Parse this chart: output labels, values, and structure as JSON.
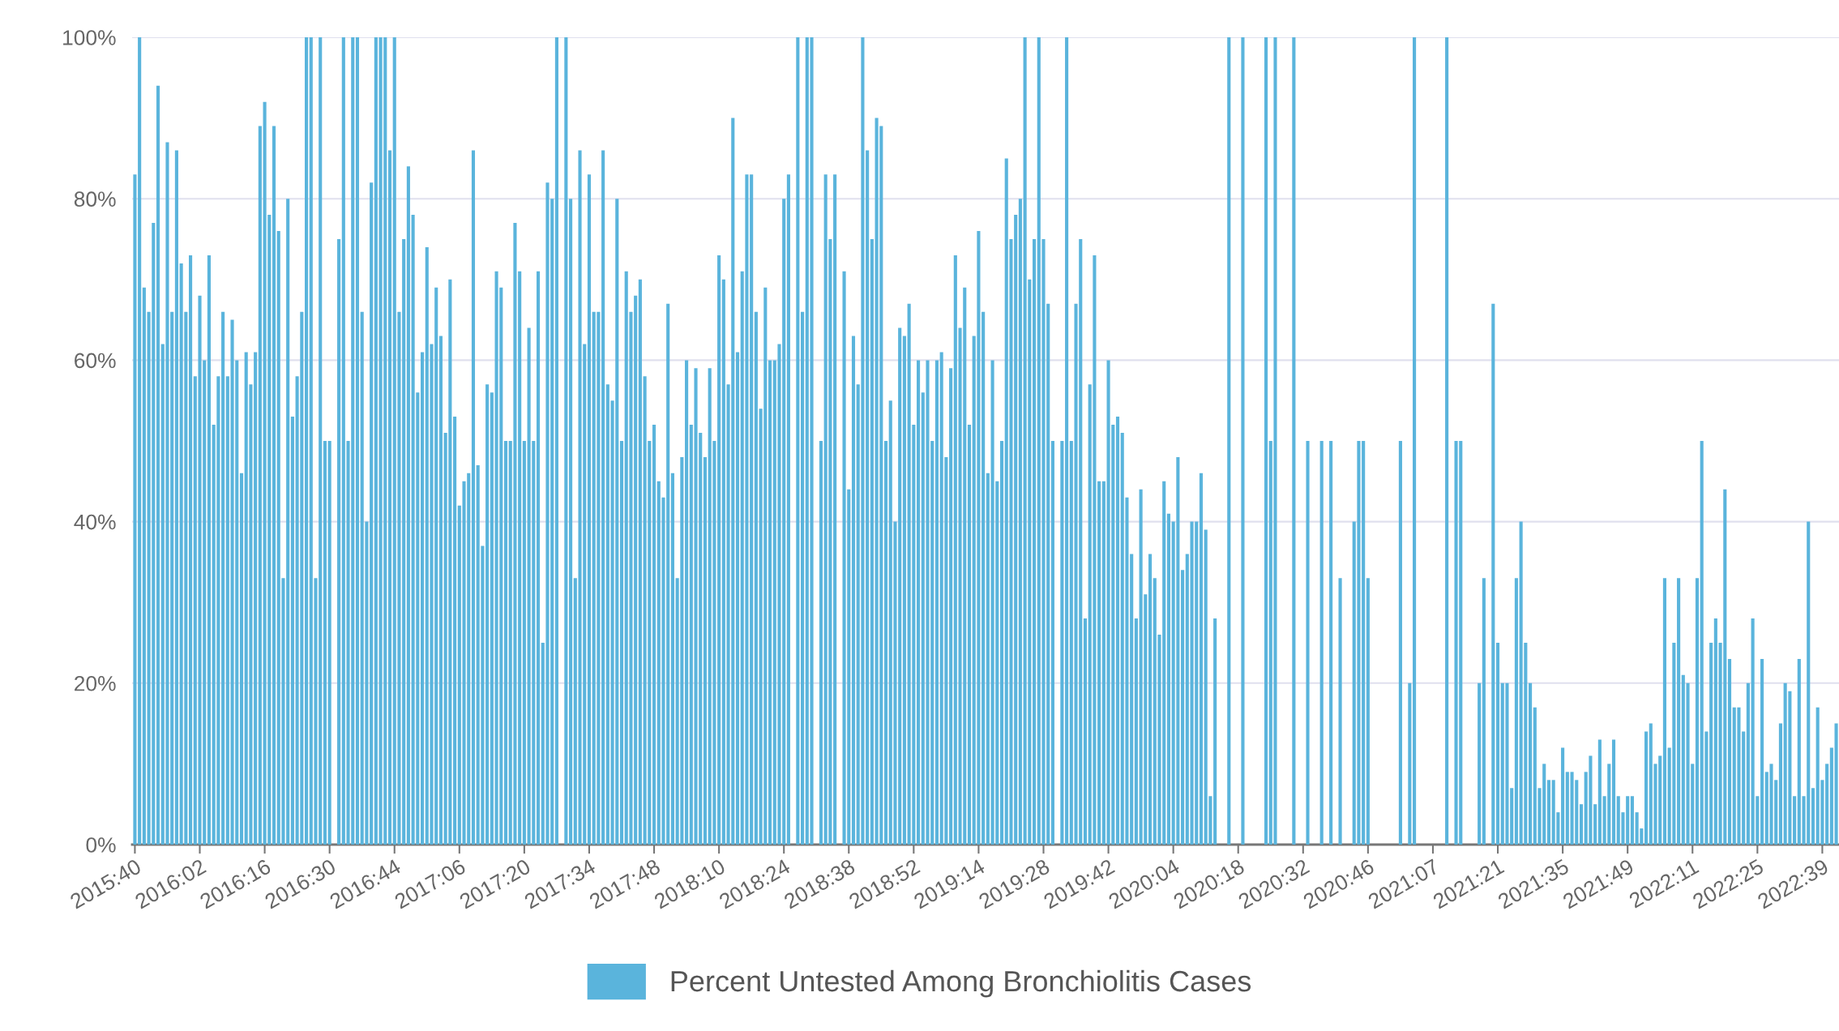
{
  "chart_data": {
    "type": "bar",
    "categories": [
      "2015:40",
      null,
      null,
      null,
      null,
      null,
      null,
      null,
      null,
      null,
      null,
      null,
      null,
      null,
      "2016:02",
      null,
      null,
      null,
      null,
      null,
      null,
      null,
      null,
      null,
      null,
      null,
      null,
      null,
      "2016:16",
      null,
      null,
      null,
      null,
      null,
      null,
      null,
      null,
      null,
      null,
      null,
      null,
      null,
      "2016:30",
      null,
      null,
      null,
      null,
      null,
      null,
      null,
      null,
      null,
      null,
      null,
      null,
      null,
      "2016:44",
      null,
      null,
      null,
      null,
      null,
      null,
      null,
      null,
      null,
      null,
      null,
      null,
      null,
      "2017:06",
      null,
      null,
      null,
      null,
      null,
      null,
      null,
      null,
      null,
      null,
      null,
      null,
      null,
      "2017:20",
      null,
      null,
      null,
      null,
      null,
      null,
      null,
      null,
      null,
      null,
      null,
      null,
      null,
      "2017:34",
      null,
      null,
      null,
      null,
      null,
      null,
      null,
      null,
      null,
      null,
      null,
      null,
      null,
      "2017:48",
      null,
      null,
      null,
      null,
      null,
      null,
      null,
      null,
      null,
      null,
      null,
      null,
      null,
      "2018:10",
      null,
      null,
      null,
      null,
      null,
      null,
      null,
      null,
      null,
      null,
      null,
      null,
      null,
      "2018:24",
      null,
      null,
      null,
      null,
      null,
      null,
      null,
      null,
      null,
      null,
      null,
      null,
      null,
      "2018:38",
      null,
      null,
      null,
      null,
      null,
      null,
      null,
      null,
      null,
      null,
      null,
      null,
      null,
      "2018:52",
      null,
      null,
      null,
      null,
      null,
      null,
      null,
      null,
      null,
      null,
      null,
      null,
      null,
      "2019:14",
      null,
      null,
      null,
      null,
      null,
      null,
      null,
      null,
      null,
      null,
      null,
      null,
      null,
      "2019:28",
      null,
      null,
      null,
      null,
      null,
      null,
      null,
      null,
      null,
      null,
      null,
      null,
      null,
      "2019:42",
      null,
      null,
      null,
      null,
      null,
      null,
      null,
      null,
      null,
      null,
      null,
      null,
      null,
      "2020:04",
      null,
      null,
      null,
      null,
      null,
      null,
      null,
      null,
      null,
      null,
      null,
      null,
      null,
      "2020:18",
      null,
      null,
      null,
      null,
      null,
      null,
      null,
      null,
      null,
      null,
      null,
      null,
      null,
      "2020:32",
      null,
      null,
      null,
      null,
      null,
      null,
      null,
      null,
      null,
      null,
      null,
      null,
      null,
      "2020:46",
      null,
      null,
      null,
      null,
      null,
      null,
      null,
      null,
      null,
      null,
      null,
      null,
      null,
      "2021:07",
      null,
      null,
      null,
      null,
      null,
      null,
      null,
      null,
      null,
      null,
      null,
      null,
      null,
      "2021:21",
      null,
      null,
      null,
      null,
      null,
      null,
      null,
      null,
      null,
      null,
      null,
      null,
      null,
      "2021:35",
      null,
      null,
      null,
      null,
      null,
      null,
      null,
      null,
      null,
      null,
      null,
      null,
      null,
      "2021:49",
      null,
      null,
      null,
      null,
      null,
      null,
      null,
      null,
      null,
      null,
      null,
      null,
      null,
      "2022:11",
      null,
      null,
      null,
      null,
      null,
      null,
      null,
      null,
      null,
      null,
      null,
      null,
      null,
      "2022:25",
      null,
      null,
      null,
      null,
      null,
      null,
      null,
      null,
      null,
      null,
      null,
      null,
      null,
      "2022:39",
      null,
      null,
      null
    ],
    "series": [
      {
        "name": "Percent Untested Among Bronchiolitis Cases",
        "color": "#5ab4dc",
        "values": [
          83,
          100,
          69,
          66,
          77,
          94,
          62,
          87,
          66,
          86,
          72,
          66,
          73,
          58,
          68,
          60,
          73,
          52,
          58,
          66,
          58,
          65,
          60,
          46,
          61,
          57,
          61,
          89,
          92,
          78,
          89,
          76,
          33,
          80,
          53,
          58,
          66,
          100,
          100,
          33,
          100,
          50,
          50,
          null,
          75,
          100,
          50,
          100,
          100,
          66,
          40,
          82,
          100,
          100,
          100,
          86,
          100,
          66,
          75,
          84,
          78,
          56,
          61,
          74,
          62,
          69,
          63,
          51,
          70,
          53,
          42,
          45,
          46,
          86,
          47,
          37,
          57,
          56,
          71,
          69,
          50,
          50,
          77,
          71,
          50,
          64,
          50,
          71,
          25,
          82,
          80,
          100,
          null,
          100,
          80,
          33,
          86,
          62,
          83,
          66,
          66,
          86,
          57,
          55,
          80,
          50,
          71,
          66,
          68,
          70,
          58,
          50,
          52,
          45,
          43,
          67,
          46,
          33,
          48,
          60,
          52,
          59,
          51,
          48,
          59,
          50,
          73,
          70,
          57,
          90,
          61,
          71,
          83,
          83,
          66,
          54,
          69,
          60,
          60,
          62,
          80,
          83,
          null,
          100,
          66,
          100,
          100,
          null,
          50,
          83,
          75,
          83,
          null,
          71,
          44,
          63,
          57,
          100,
          86,
          75,
          90,
          89,
          50,
          55,
          40,
          64,
          63,
          67,
          52,
          60,
          56,
          60,
          50,
          60,
          61,
          48,
          59,
          73,
          64,
          69,
          52,
          63,
          76,
          66,
          46,
          60,
          45,
          50,
          85,
          75,
          78,
          80,
          100,
          70,
          75,
          100,
          75,
          67,
          50,
          null,
          50,
          100,
          50,
          67,
          75,
          28,
          57,
          73,
          45,
          45,
          60,
          52,
          53,
          51,
          43,
          36,
          28,
          44,
          31,
          36,
          33,
          26,
          45,
          41,
          40,
          48,
          34,
          36,
          40,
          40,
          46,
          39,
          6,
          28,
          null,
          null,
          100,
          null,
          null,
          100,
          null,
          null,
          null,
          null,
          100,
          50,
          100,
          null,
          null,
          null,
          100,
          null,
          null,
          50,
          null,
          null,
          50,
          null,
          50,
          null,
          33,
          null,
          null,
          40,
          50,
          50,
          33,
          null,
          null,
          null,
          null,
          null,
          null,
          50,
          null,
          20,
          100,
          null,
          null,
          null,
          null,
          null,
          null,
          100,
          null,
          50,
          50,
          null,
          null,
          null,
          20,
          33,
          null,
          67,
          25,
          20,
          20,
          7,
          33,
          40,
          25,
          20,
          17,
          7,
          10,
          8,
          8,
          4,
          12,
          9,
          9,
          8,
          5,
          9,
          11,
          5,
          13,
          6,
          10,
          13,
          6,
          4,
          6,
          6,
          4,
          2,
          14,
          15,
          10,
          11,
          33,
          12,
          25,
          33,
          21,
          20,
          10,
          33,
          50,
          14,
          25,
          28,
          25,
          44,
          23,
          17,
          17,
          14,
          20,
          28,
          6,
          23,
          9,
          10,
          8,
          15,
          20,
          19,
          6,
          23,
          6,
          40,
          7,
          17,
          8,
          10,
          12,
          15
        ]
      }
    ],
    "ylim": [
      0,
      100
    ],
    "yticks": [
      {
        "value": 0,
        "label": "0%"
      },
      {
        "value": 20,
        "label": "20%"
      },
      {
        "value": 40,
        "label": "40%"
      },
      {
        "value": 60,
        "label": "60%"
      },
      {
        "value": 80,
        "label": "80%"
      },
      {
        "value": 100,
        "label": "100%"
      }
    ],
    "grid": "y",
    "legend": "bottom"
  }
}
